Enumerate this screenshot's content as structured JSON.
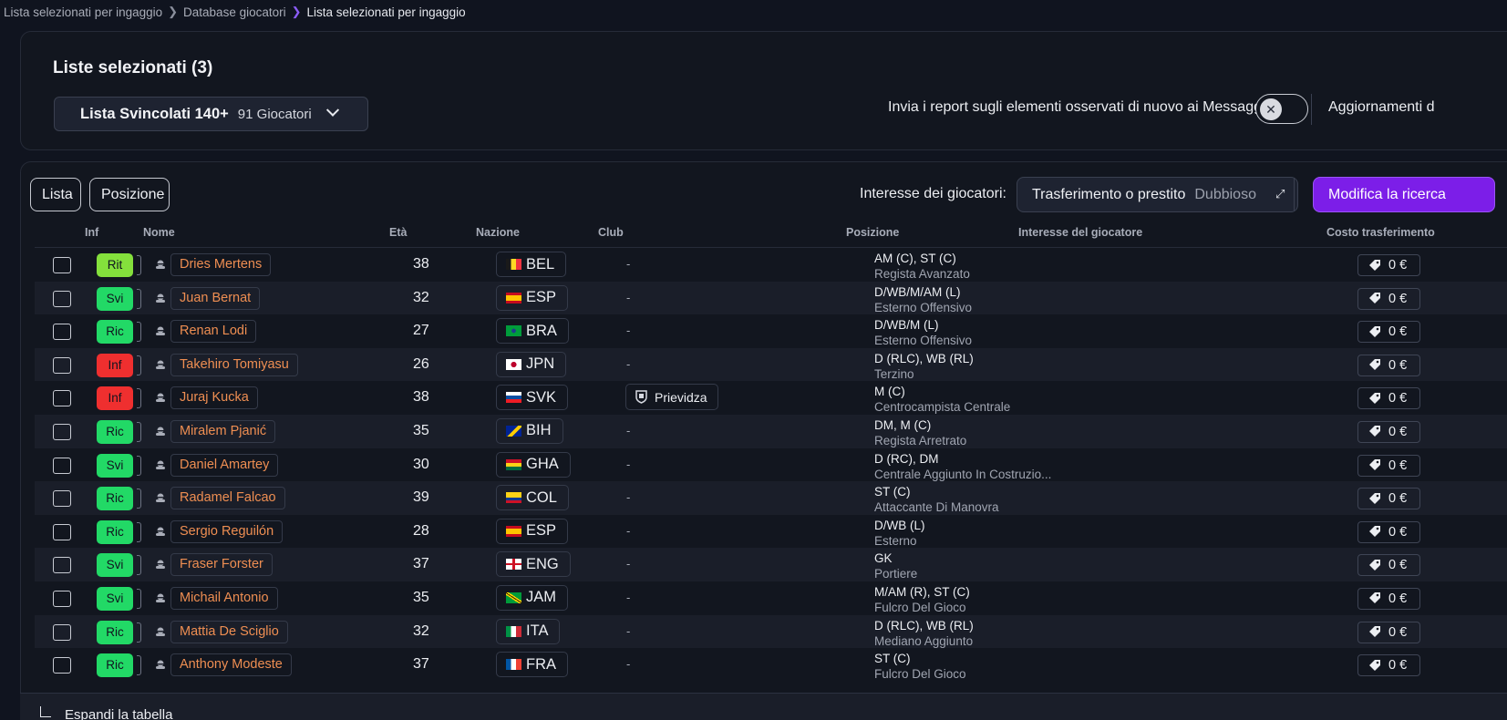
{
  "breadcrumb": [
    "Lista selezionati per ingaggio",
    "Database giocatori",
    "Lista selezionati per ingaggio"
  ],
  "header": {
    "title": "Liste selezionati (3)",
    "list_name": "Lista Svincolati 140+",
    "list_count": "91 Giocatori",
    "report_label": "Invia i report sugli elementi osservati di nuovo ai Messaggi",
    "updates_label": "Aggiornamenti d"
  },
  "toolbar": {
    "lista": "Lista",
    "posizione": "Posizione",
    "interest_label": "Interesse dei giocatori:",
    "interest_value": "Trasferimento o prestito",
    "interest_secondary": "Dubbioso",
    "modify": "Modifica la ricerca"
  },
  "columns": {
    "inf": "Inf",
    "nome": "Nome",
    "eta": "Età",
    "nazione": "Nazione",
    "club": "Club",
    "posizione": "Posizione",
    "interesse": "Interesse del giocatore",
    "costo": "Costo trasferimento"
  },
  "badge_colors": {
    "Rit": "#84e03c",
    "Svi": "#22d966",
    "Ric": "#22d966",
    "Inf": "#ef2f2f"
  },
  "rows": [
    {
      "inf": "Rit",
      "name": "Dries Mertens",
      "age": "38",
      "flag": "bel",
      "nation": "BEL",
      "club": "-",
      "pos": "AM (C), ST (C)",
      "role": "Regista Avanzato",
      "cost": "0 €"
    },
    {
      "inf": "Svi",
      "name": "Juan Bernat",
      "age": "32",
      "flag": "esp",
      "nation": "ESP",
      "club": "-",
      "pos": "D/WB/M/AM (L)",
      "role": "Esterno Offensivo",
      "cost": "0 €"
    },
    {
      "inf": "Ric",
      "name": "Renan Lodi",
      "age": "27",
      "flag": "bra",
      "nation": "BRA",
      "club": "-",
      "pos": "D/WB/M (L)",
      "role": "Esterno Offensivo",
      "cost": "0 €"
    },
    {
      "inf": "Inf",
      "name": "Takehiro Tomiyasu",
      "age": "26",
      "flag": "jpn",
      "nation": "JPN",
      "club": "-",
      "pos": "D (RLC), WB (RL)",
      "role": "Terzino",
      "cost": "0 €"
    },
    {
      "inf": "Inf",
      "name": "Juraj Kucka",
      "age": "38",
      "flag": "svk",
      "nation": "SVK",
      "club": "Prievidza",
      "pos": "M (C)",
      "role": "Centrocampista Centrale",
      "cost": "0 €"
    },
    {
      "inf": "Ric",
      "name": "Miralem Pjanić",
      "age": "35",
      "flag": "bih",
      "nation": "BIH",
      "club": "-",
      "pos": "DM, M (C)",
      "role": "Regista Arretrato",
      "cost": "0 €"
    },
    {
      "inf": "Svi",
      "name": "Daniel Amartey",
      "age": "30",
      "flag": "gha",
      "nation": "GHA",
      "club": "-",
      "pos": "D (RC), DM",
      "role": "Centrale Aggiunto In Costruzio...",
      "cost": "0 €"
    },
    {
      "inf": "Ric",
      "name": "Radamel Falcao",
      "age": "39",
      "flag": "col",
      "nation": "COL",
      "club": "-",
      "pos": "ST (C)",
      "role": "Attaccante Di Manovra",
      "cost": "0 €"
    },
    {
      "inf": "Ric",
      "name": "Sergio Reguilón",
      "age": "28",
      "flag": "esp",
      "nation": "ESP",
      "club": "-",
      "pos": "D/WB (L)",
      "role": "Esterno",
      "cost": "0 €"
    },
    {
      "inf": "Svi",
      "name": "Fraser Forster",
      "age": "37",
      "flag": "eng",
      "nation": "ENG",
      "club": "-",
      "pos": "GK",
      "role": "Portiere",
      "cost": "0 €"
    },
    {
      "inf": "Svi",
      "name": "Michail Antonio",
      "age": "35",
      "flag": "jam",
      "nation": "JAM",
      "club": "-",
      "pos": "M/AM (R), ST (C)",
      "role": "Fulcro Del Gioco",
      "cost": "0 €"
    },
    {
      "inf": "Ric",
      "name": "Mattia De Sciglio",
      "age": "32",
      "flag": "ita",
      "nation": "ITA",
      "club": "-",
      "pos": "D (RLC), WB (RL)",
      "role": "Mediano Aggiunto",
      "cost": "0 €"
    },
    {
      "inf": "Ric",
      "name": "Anthony Modeste",
      "age": "37",
      "flag": "fra",
      "nation": "FRA",
      "club": "-",
      "pos": "ST (C)",
      "role": "Fulcro Del Gioco",
      "cost": "0 €"
    }
  ],
  "footer": {
    "expand": "Espandi la tabella"
  }
}
